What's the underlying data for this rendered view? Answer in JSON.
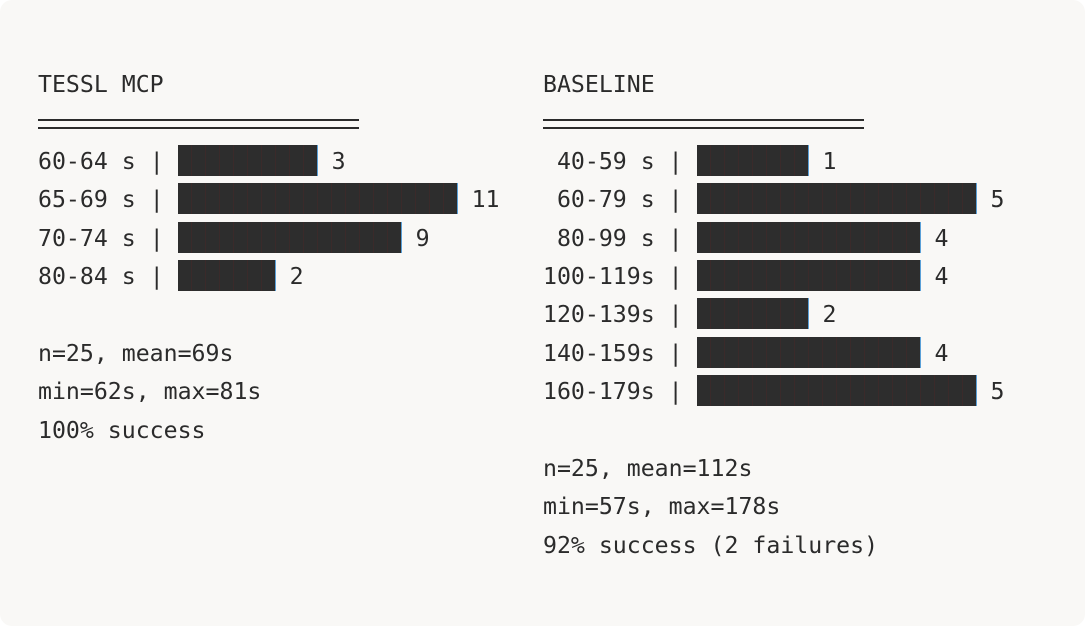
{
  "chart_data": [
    {
      "type": "bar",
      "orientation": "horizontal",
      "title": "TESSL MCP",
      "categories": [
        "60-64 s",
        "65-69 s",
        "70-74 s",
        "80-84 s"
      ],
      "values": [
        3,
        11,
        9,
        2
      ],
      "bar_chars": [
        10,
        20,
        16,
        7
      ],
      "stats": [
        "n=25, mean=69s",
        "min=62s, max=81s",
        "100% success"
      ],
      "bar_color": "#2d2d2d"
    },
    {
      "type": "bar",
      "orientation": "horizontal",
      "title": "BASELINE",
      "categories": [
        " 40-59 s",
        " 60-79 s",
        " 80-99 s",
        "100-119s",
        "120-139s",
        "140-159s",
        "160-179s"
      ],
      "values": [
        1,
        5,
        4,
        4,
        2,
        4,
        5
      ],
      "bar_chars": [
        8,
        20,
        16,
        16,
        8,
        16,
        20
      ],
      "stats": [
        "n=25, mean=112s",
        "min=57s, max=178s",
        "92% success (2 failures)"
      ],
      "bar_color": "#2d2d2d"
    }
  ]
}
